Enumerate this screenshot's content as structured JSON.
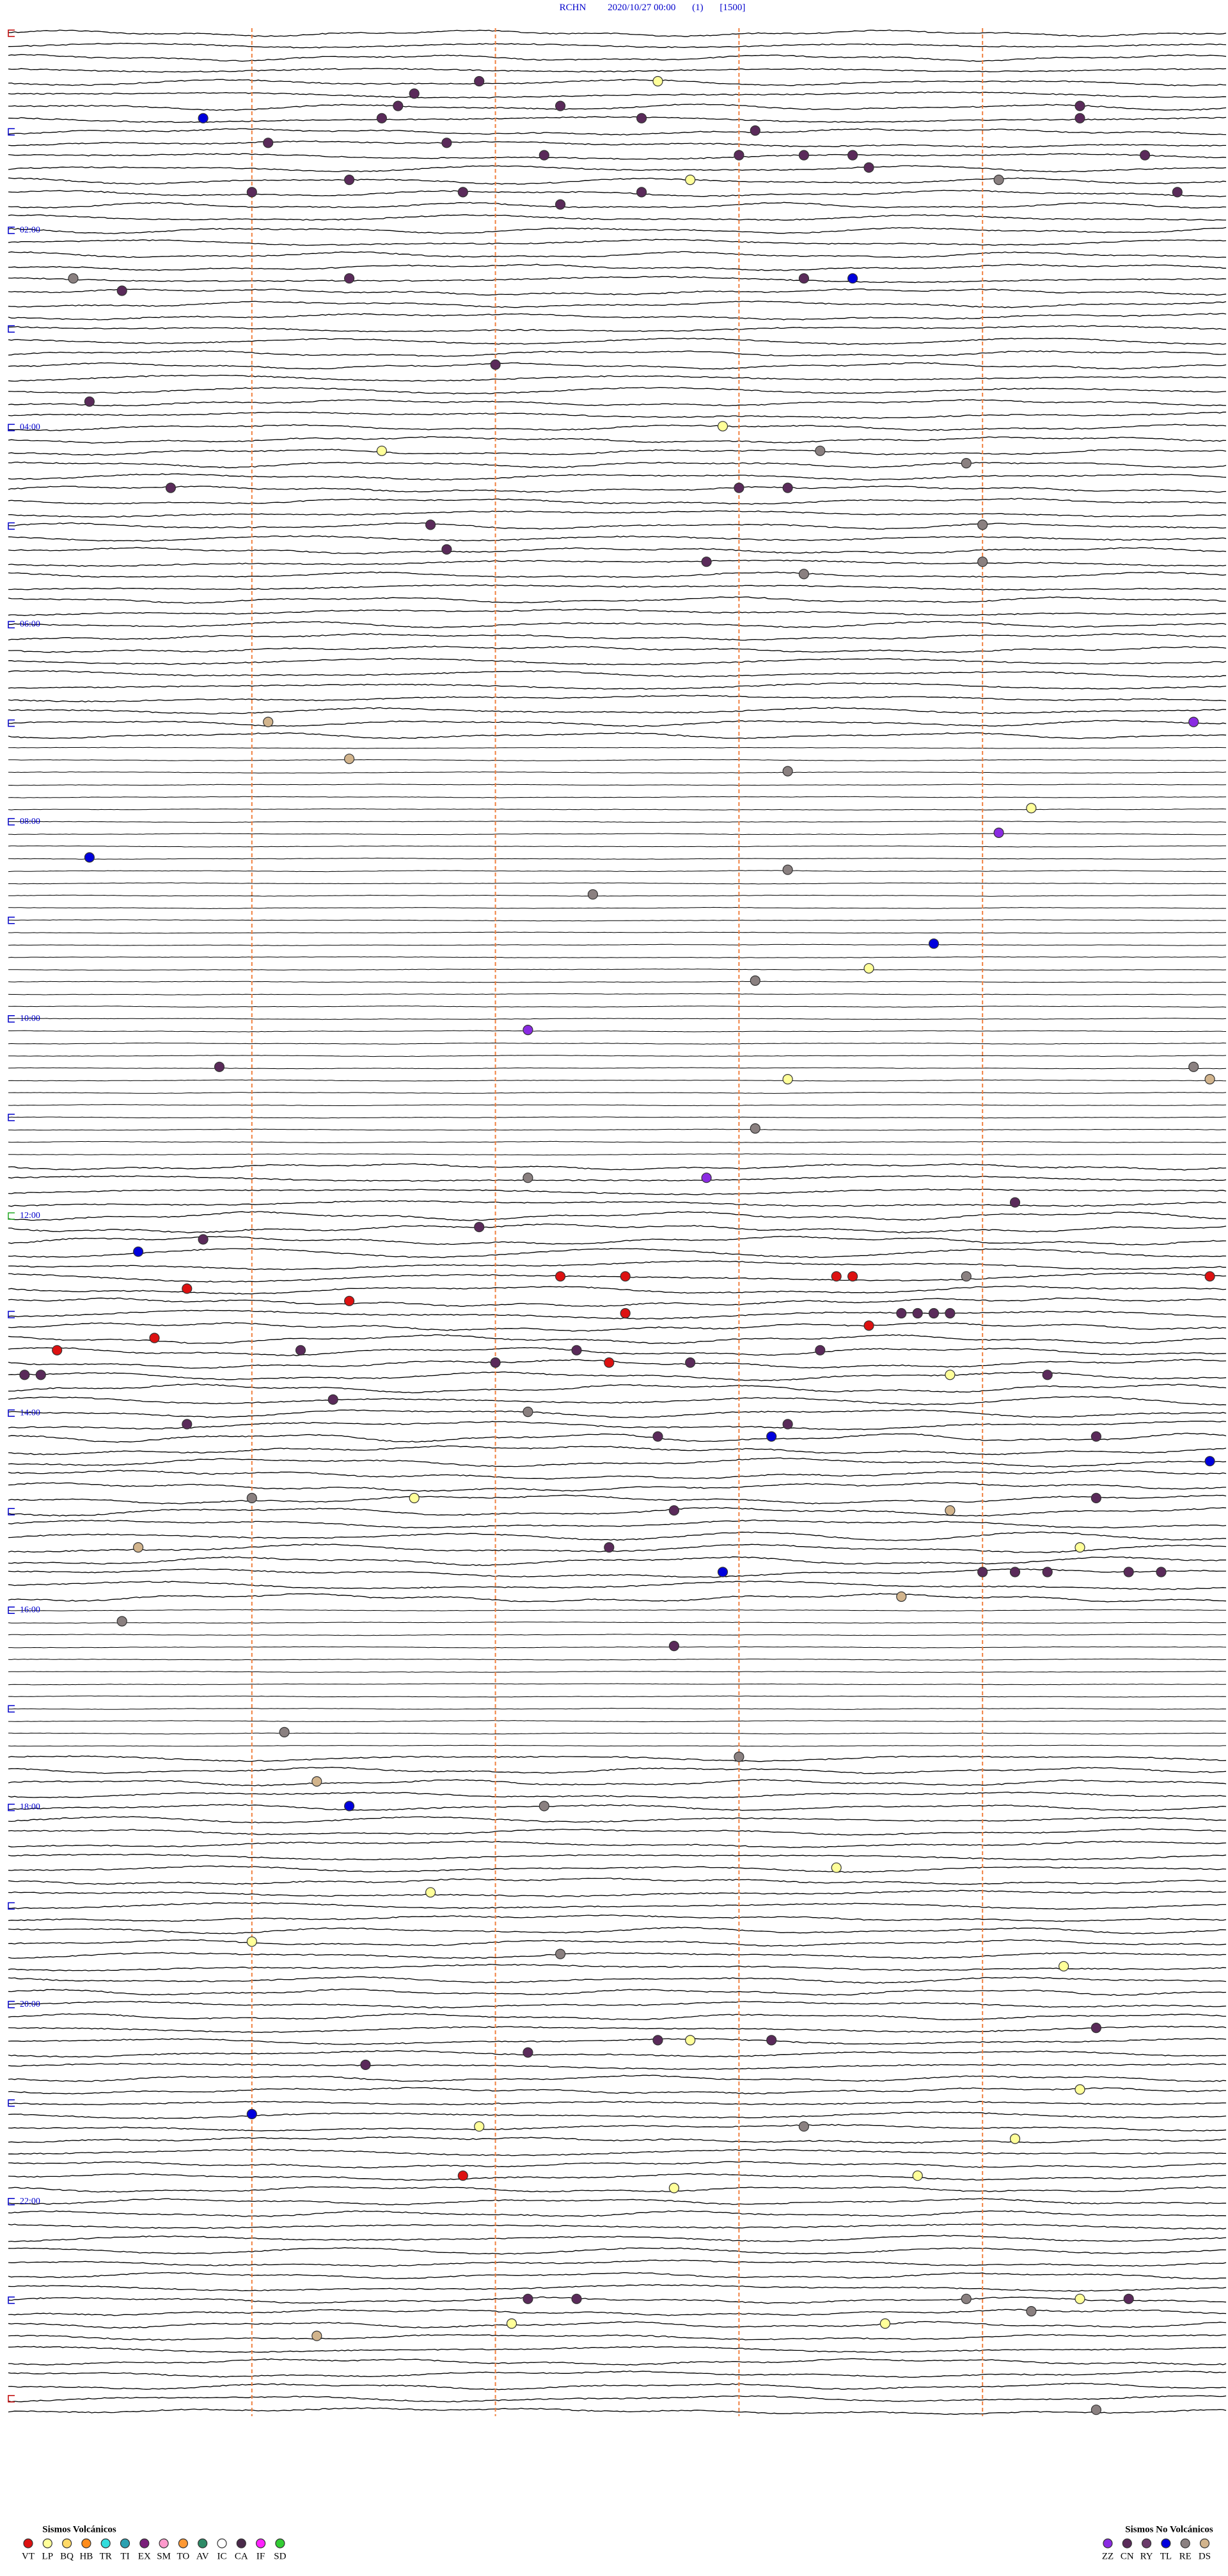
{
  "header": {
    "station": "RCHN",
    "datetime": "2020/10/27 00:00",
    "channel": "(1)",
    "scale": "[1500]"
  },
  "time_labels": [
    "02:00",
    "04:00",
    "06:00",
    "08:00",
    "10:00",
    "12:00",
    "14:00",
    "16:00",
    "18:00",
    "20:00",
    "22:00"
  ],
  "legend": {
    "volcanic": {
      "title": "Sismos Volcánicos",
      "items": [
        {
          "code": "VT",
          "color": "#dd1111"
        },
        {
          "code": "LP",
          "color": "#ffff99"
        },
        {
          "code": "BQ",
          "color": "#ffd966"
        },
        {
          "code": "HB",
          "color": "#ff8c1a"
        },
        {
          "code": "TR",
          "color": "#33dddd"
        },
        {
          "code": "TI",
          "color": "#2aa0b0"
        },
        {
          "code": "EX",
          "color": "#7a1f7a"
        },
        {
          "code": "SM",
          "color": "#ff99cc"
        },
        {
          "code": "TO",
          "color": "#ff9933"
        },
        {
          "code": "AV",
          "color": "#2e8b67"
        },
        {
          "code": "IC",
          "color": "#ffffff"
        },
        {
          "code": "CA",
          "color": "#4a2a4a"
        },
        {
          "code": "IF",
          "color": "#ff22ff"
        },
        {
          "code": "SD",
          "color": "#33cc33"
        }
      ]
    },
    "non_volcanic": {
      "title": "Sismos No Volcánicos",
      "items": [
        {
          "code": "ZZ",
          "color": "#8a2be2"
        },
        {
          "code": "CN",
          "color": "#5a2a5a"
        },
        {
          "code": "RY",
          "color": "#6a3a6a"
        },
        {
          "code": "TL",
          "color": "#0000dd"
        },
        {
          "code": "RE",
          "color": "#8a8080"
        },
        {
          "code": "DS",
          "color": "#d2b48c"
        }
      ]
    }
  },
  "events": [
    {
      "t": 34.0,
      "type": "LP"
    },
    {
      "t": 32.9,
      "type": "CN"
    },
    {
      "t": 40.0,
      "type": "CN"
    },
    {
      "t": 48.4,
      "type": "CN"
    },
    {
      "t": 47.4,
      "type": "CN"
    },
    {
      "t": 54.8,
      "type": "CN"
    },
    {
      "t": 51.6,
      "type": "CN"
    },
    {
      "t": 59.1,
      "type": "CN"
    },
    {
      "t": 53.7,
      "type": "TL"
    },
    {
      "t": 56.4,
      "type": "CN"
    },
    {
      "t": 64.6,
      "type": "CN"
    },
    {
      "t": 70.2,
      "type": "CN"
    },
    {
      "t": 69.1,
      "type": "CN"
    },
    {
      "t": 79.5,
      "type": "CN"
    },
    {
      "t": 80.2,
      "type": "CN"
    },
    {
      "t": 78.3,
      "type": "CN"
    },
    {
      "t": 79.9,
      "type": "CN"
    },
    {
      "t": 87.8,
      "type": "CN"
    },
    {
      "t": 82.0,
      "type": "CN"
    },
    {
      "t": 94.2,
      "type": "LP"
    },
    {
      "t": 92.1,
      "type": "CN"
    },
    {
      "t": 96.1,
      "type": "RE"
    },
    {
      "t": 100.3,
      "type": "CN"
    },
    {
      "t": 101.4,
      "type": "CN"
    },
    {
      "t": 99.0,
      "type": "CN"
    },
    {
      "t": 104.7,
      "type": "CN"
    },
    {
      "t": 108.4,
      "type": "CN"
    },
    {
      "t": 150.4,
      "type": "RE"
    },
    {
      "t": 158.2,
      "type": "CN"
    },
    {
      "t": 152.1,
      "type": "CN"
    },
    {
      "t": 154.9,
      "type": "CN"
    },
    {
      "t": 155.2,
      "type": "TL"
    },
    {
      "t": 205.5,
      "type": "CN"
    },
    {
      "t": 225.5,
      "type": "CN"
    },
    {
      "t": 244.4,
      "type": "LP"
    },
    {
      "t": 257.3,
      "type": "LP"
    },
    {
      "t": 260.0,
      "type": "RE"
    },
    {
      "t": 268.4,
      "type": "RE"
    },
    {
      "t": 282.3,
      "type": "CN"
    },
    {
      "t": 282.0,
      "type": "CN"
    },
    {
      "t": 278.5,
      "type": "CN"
    },
    {
      "t": 306.0,
      "type": "RE"
    },
    {
      "t": 302.6,
      "type": "CN"
    },
    {
      "t": 317.7,
      "type": "CN"
    },
    {
      "t": 326.8,
      "type": "CN"
    },
    {
      "t": 328.5,
      "type": "RE"
    },
    {
      "t": 334.9,
      "type": "RE"
    },
    {
      "t": 421.6,
      "type": "DS"
    },
    {
      "t": 427.3,
      "type": "ZZ"
    },
    {
      "t": 444.6,
      "type": "DS"
    },
    {
      "t": 454.8,
      "type": "RE"
    },
    {
      "t": 478.8,
      "type": "LP"
    },
    {
      "t": 493.6,
      "type": "ZZ"
    },
    {
      "t": 503.0,
      "type": "TL"
    },
    {
      "t": 514.8,
      "type": "RE"
    },
    {
      "t": 528.6,
      "type": "RE"
    },
    {
      "t": 560.7,
      "type": "TL"
    },
    {
      "t": 575.3,
      "type": "LP"
    },
    {
      "t": 582.1,
      "type": "RE"
    },
    {
      "t": 610.7,
      "type": "ZZ"
    },
    {
      "t": 631.3,
      "type": "CN"
    },
    {
      "t": 642.3,
      "type": "LP"
    },
    {
      "t": 637.3,
      "type": "RE"
    },
    {
      "t": 644.9,
      "type": "DS"
    },
    {
      "t": 672.1,
      "type": "RE"
    },
    {
      "t": 700.7,
      "type": "RE"
    },
    {
      "t": 701.8,
      "type": "ZZ"
    },
    {
      "t": 718.7,
      "type": "CN"
    },
    {
      "t": 730.4,
      "type": "CN"
    },
    {
      "t": 736.2,
      "type": "CN"
    },
    {
      "t": 743.3,
      "type": "TL"
    },
    {
      "t": 760.9,
      "type": "VT"
    },
    {
      "t": 761.3,
      "type": "VT"
    },
    {
      "t": 762.6,
      "type": "VT"
    },
    {
      "t": 762.7,
      "type": "VT"
    },
    {
      "t": 763.4,
      "type": "RE"
    },
    {
      "t": 764.9,
      "type": "VT"
    },
    {
      "t": 766.1,
      "type": "VT"
    },
    {
      "t": 774.6,
      "type": "VT"
    },
    {
      "t": 783.8,
      "type": "VT"
    },
    {
      "t": 792.8,
      "type": "VT"
    },
    {
      "t": 785.5,
      "type": "CN"
    },
    {
      "t": 785.6,
      "type": "CN"
    },
    {
      "t": 785.7,
      "type": "CN"
    },
    {
      "t": 785.8,
      "type": "CN"
    },
    {
      "t": 795.9,
      "type": "VT"
    },
    {
      "t": 802.8,
      "type": "VT"
    },
    {
      "t": 804.3,
      "type": "CN"
    },
    {
      "t": 806.0,
      "type": "CN"
    },
    {
      "t": 807.5,
      "type": "CN"
    },
    {
      "t": 817.6,
      "type": "CN"
    },
    {
      "t": 817.7,
      "type": "CN"
    },
    {
      "t": 813.0,
      "type": "CN"
    },
    {
      "t": 813.7,
      "type": "VT"
    },
    {
      "t": 814.2,
      "type": "CN"
    },
    {
      "t": 823.3,
      "type": "LP"
    },
    {
      "t": 823.9,
      "type": "CN"
    },
    {
      "t": 834.5,
      "type": "CN"
    },
    {
      "t": 843.2,
      "type": "RE"
    },
    {
      "t": 852.3,
      "type": "CN"
    },
    {
      "t": 848.6,
      "type": "CN"
    },
    {
      "t": 859.0,
      "type": "CN"
    },
    {
      "t": 859.7,
      "type": "TL"
    },
    {
      "t": 861.7,
      "type": "CN"
    },
    {
      "t": 877.4,
      "type": "TL"
    },
    {
      "t": 895.0,
      "type": "LP"
    },
    {
      "t": 894.0,
      "type": "RE"
    },
    {
      "t": 899.2,
      "type": "CN"
    },
    {
      "t": 904.1,
      "type": "CN"
    },
    {
      "t": 905.8,
      "type": "DS"
    },
    {
      "t": 923.3,
      "type": "DS"
    },
    {
      "t": 926.2,
      "type": "CN"
    },
    {
      "t": 929.1,
      "type": "LP"
    },
    {
      "t": 943.5,
      "type": "CN"
    },
    {
      "t": 943.7,
      "type": "CN"
    },
    {
      "t": 943.9,
      "type": "CN"
    },
    {
      "t": 944.6,
      "type": "CN"
    },
    {
      "t": 941.9,
      "type": "TL"
    },
    {
      "t": 944.4,
      "type": "CN"
    },
    {
      "t": 958.0,
      "type": "DS"
    },
    {
      "t": 968.2,
      "type": "RE"
    },
    {
      "t": 986.6,
      "type": "CN"
    },
    {
      "t": 1036.7,
      "type": "RE"
    },
    {
      "t": 1054.5,
      "type": "RE"
    },
    {
      "t": 1066.9,
      "type": "DS"
    },
    {
      "t": 1082.1,
      "type": "TL"
    },
    {
      "t": 1083.3,
      "type": "RE"
    },
    {
      "t": 1122.6,
      "type": "LP"
    },
    {
      "t": 1135.1,
      "type": "LP"
    },
    {
      "t": 1164.0,
      "type": "LP"
    },
    {
      "t": 1173.4,
      "type": "RE"
    },
    {
      "t": 1184.0,
      "type": "LP"
    },
    {
      "t": 1221.7,
      "type": "CN"
    },
    {
      "t": 1226.7,
      "type": "LP"
    },
    {
      "t": 1226.5,
      "type": "CN"
    },
    {
      "t": 1227.2,
      "type": "CN"
    },
    {
      "t": 1233.2,
      "type": "CN"
    },
    {
      "t": 1239.7,
      "type": "CN"
    },
    {
      "t": 1259.1,
      "type": "LP"
    },
    {
      "t": 1269.0,
      "type": "TL"
    },
    {
      "t": 1277.9,
      "type": "LP"
    },
    {
      "t": 1279.9,
      "type": "RE"
    },
    {
      "t": 1288.7,
      "type": "LP"
    },
    {
      "t": 1307.8,
      "type": "VT"
    },
    {
      "t": 1310.6,
      "type": "LP"
    },
    {
      "t": 1316.6,
      "type": "LP"
    },
    {
      "t": 1383.2,
      "type": "CN"
    },
    {
      "t": 1383.5,
      "type": "CN"
    },
    {
      "t": 1385.9,
      "type": "RE"
    },
    {
      "t": 1386.6,
      "type": "LP"
    },
    {
      "t": 1386.9,
      "type": "CN"
    },
    {
      "t": 1393.8,
      "type": "RE"
    },
    {
      "t": 1398.1,
      "type": "LP"
    },
    {
      "t": 1400.4,
      "type": "LP"
    },
    {
      "t": 1404.4,
      "type": "DS"
    },
    {
      "t": 1454.2,
      "type": "RE"
    }
  ]
}
